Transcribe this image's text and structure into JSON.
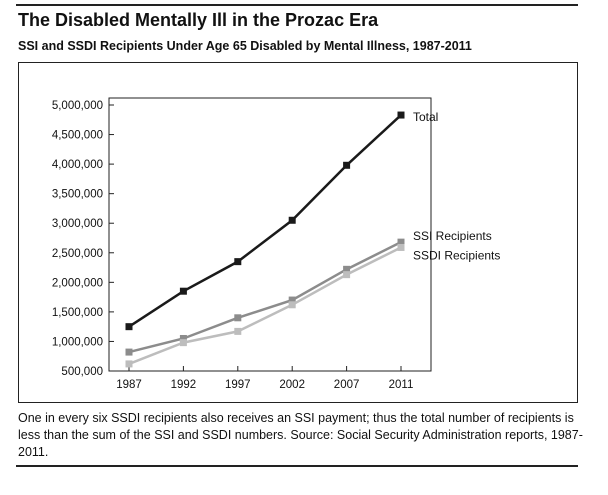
{
  "title": "The Disabled Mentally Ill in the Prozac Era",
  "subtitle": "SSI and SSDI Recipients Under Age 65 Disabled by Mental Illness, 1987-2011",
  "caption": "One in every six SSDI recipients also receives an SSI payment; thus the total number of recipients is less than the sum of the SSI and SSDI numbers. Source: Social Security Administration reports, 1987-2011.",
  "colors": {
    "total": "#1a1a1a",
    "ssi": "#8c8c8c",
    "ssdi": "#bdbdbd"
  },
  "chart_data": {
    "type": "line",
    "title": "",
    "xlabel": "",
    "ylabel": "",
    "x": [
      1987,
      1992,
      1997,
      2002,
      2007,
      2011
    ],
    "x_tick_labels": [
      "1987",
      "1992",
      "1997",
      "2002",
      "2007",
      "2011"
    ],
    "ylim": [
      500000,
      5000000
    ],
    "y_ticks": [
      500000,
      1000000,
      1500000,
      2000000,
      2500000,
      3000000,
      3500000,
      4000000,
      4500000,
      5000000
    ],
    "y_tick_labels": [
      "500,000",
      "1,000,000",
      "1,500,000",
      "2,000,000",
      "2,500,000",
      "3,000,000",
      "3,500,000",
      "4,000,000",
      "4,500,000",
      "5,000,000"
    ],
    "grid": false,
    "series": [
      {
        "name": "Total",
        "values": [
          1250000,
          1850000,
          2350000,
          3050000,
          3980000,
          4830000
        ]
      },
      {
        "name": "SSI Recipients",
        "values": [
          820000,
          1050000,
          1400000,
          1700000,
          2220000,
          2680000
        ]
      },
      {
        "name": "SSDI Recipients",
        "values": [
          620000,
          980000,
          1170000,
          1620000,
          2130000,
          2590000
        ]
      }
    ]
  }
}
